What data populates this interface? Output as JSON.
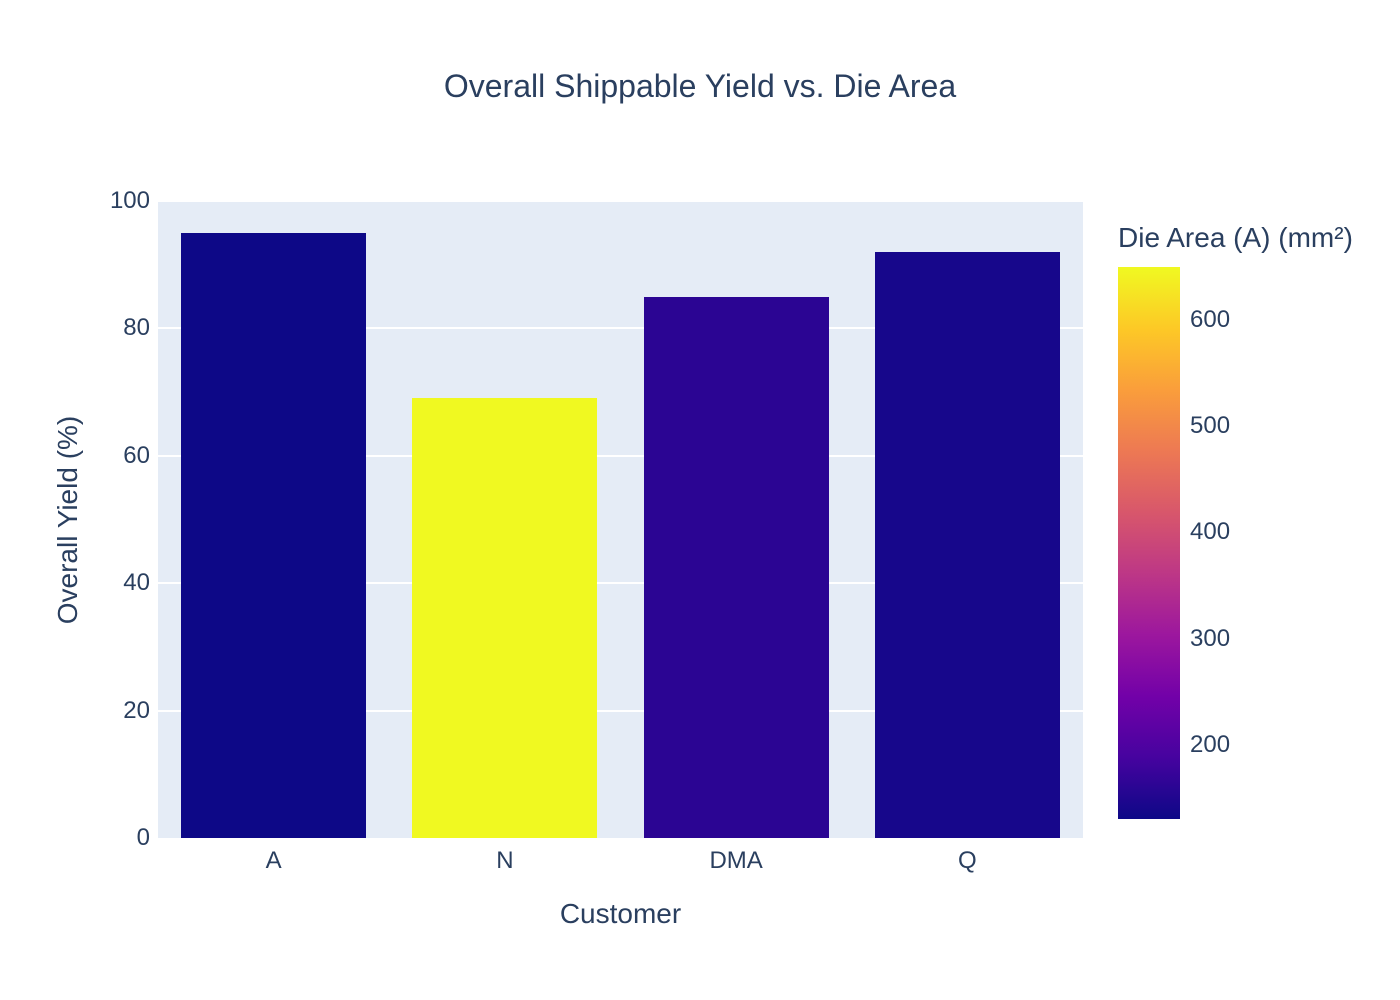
{
  "page": {
    "title": "Overall Shippable Yield vs. Die Area"
  },
  "colors": {
    "text": "#2a3f5f",
    "plot_bg": "#e5ecf6",
    "grid": "#ffffff",
    "paper_bg": "#ffffff"
  },
  "chart_data": {
    "type": "bar",
    "title": "Overall Shippable Yield vs. Die Area",
    "xlabel": "Customer",
    "ylabel": "Overall Yield (%)",
    "categories": [
      "A",
      "N",
      "DMA",
      "Q"
    ],
    "values": [
      95,
      69,
      85,
      92
    ],
    "color_values": [
      130,
      650,
      160,
      140
    ],
    "bar_colors": [
      "#0d0887",
      "#f0f921",
      "#2b0593",
      "#17078b"
    ],
    "ylim": [
      0,
      100
    ],
    "yticks": [
      0,
      20,
      40,
      60,
      80,
      100
    ],
    "grid": true,
    "legend": "none",
    "colorbar": {
      "title": "Die Area (A) (mm²)",
      "range": [
        130,
        650
      ],
      "ticks": [
        200,
        300,
        400,
        500,
        600
      ],
      "colorscale_name": "plasma",
      "colorscale_bottom_to_top": [
        "#0d0887",
        "#46039f",
        "#7201a8",
        "#9c179e",
        "#bd3786",
        "#d8576b",
        "#ed7953",
        "#fa9e3b",
        "#fdc926",
        "#f0f921"
      ]
    }
  }
}
